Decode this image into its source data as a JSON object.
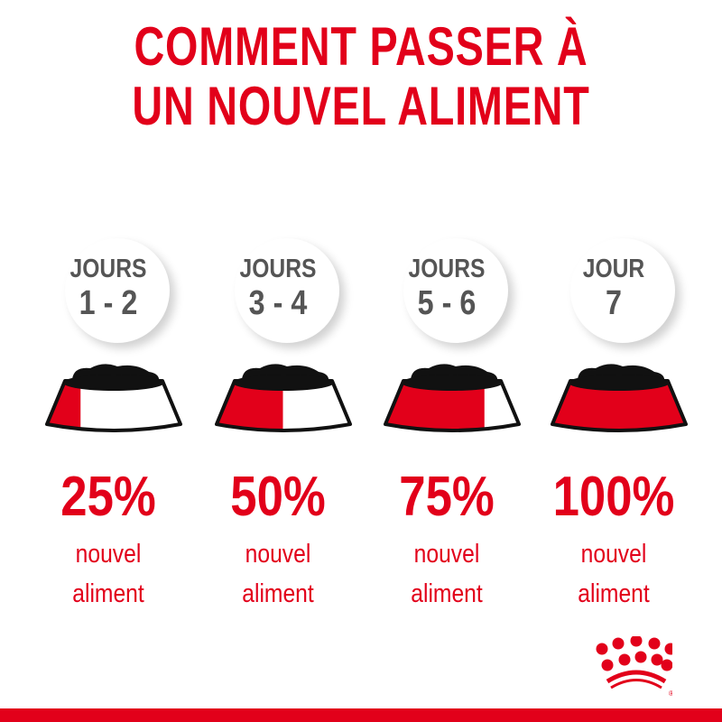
{
  "title": {
    "line1": "COMMENT PASSER À",
    "line2": "UN NOUVEL ALIMENT"
  },
  "accent_color": "#e2001a",
  "text_color": "#555555",
  "steps": [
    {
      "day_label": "JOURS",
      "days": "1 - 2",
      "percent": "25%",
      "new_food_fraction": 0.25,
      "line1": "nouvel",
      "line2": "aliment"
    },
    {
      "day_label": "JOURS",
      "days": "3 - 4",
      "percent": "50%",
      "new_food_fraction": 0.5,
      "line1": "nouvel",
      "line2": "aliment"
    },
    {
      "day_label": "JOURS",
      "days": "5 - 6",
      "percent": "75%",
      "new_food_fraction": 0.75,
      "line1": "nouvel",
      "line2": "aliment"
    },
    {
      "day_label": "JOUR",
      "days": "7",
      "percent": "100%",
      "new_food_fraction": 1.0,
      "line1": "nouvel",
      "line2": "aliment"
    }
  ],
  "logo": {
    "name": "crown-logo",
    "text": "®"
  }
}
